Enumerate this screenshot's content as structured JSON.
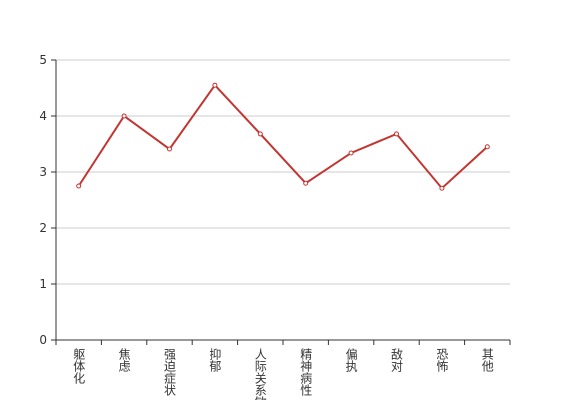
{
  "chart_data": {
    "type": "line",
    "categories": [
      "躯体化",
      "焦虑",
      "强迫症状",
      "抑郁",
      "人际关系敏感",
      "精神病性",
      "偏执",
      "敌对",
      "恐怖",
      "其他"
    ],
    "series": [
      {
        "color": "#c23531",
        "values": [
          2.75,
          4.0,
          3.41,
          4.55,
          3.68,
          2.8,
          3.34,
          3.68,
          2.71,
          3.45
        ]
      }
    ],
    "ylim": [
      0,
      5
    ],
    "yticks": [
      0,
      1,
      2,
      3,
      4,
      5
    ],
    "grid": true
  }
}
